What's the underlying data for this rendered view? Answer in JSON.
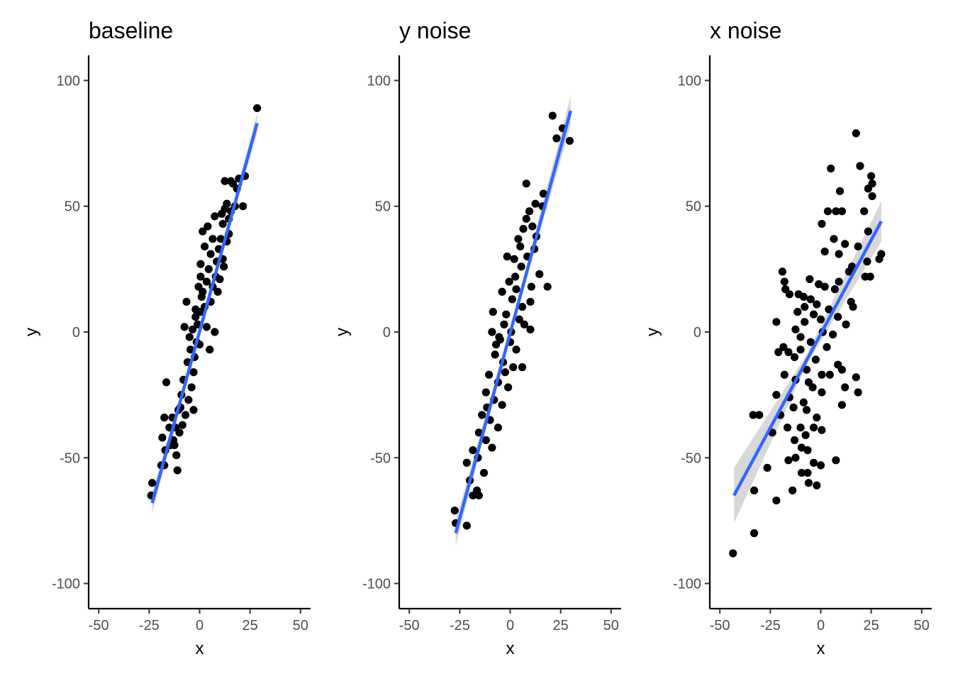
{
  "chart_data": [
    {
      "type": "scatter",
      "title": "baseline",
      "xlabel": "x",
      "ylabel": "y",
      "xlim": [
        -55,
        55
      ],
      "ylim": [
        -110,
        110
      ],
      "xticks": [
        -50,
        -25,
        0,
        25,
        50
      ],
      "xtick_labels": [
        "-50",
        "-25",
        "0",
        "25",
        "50"
      ],
      "yticks": [
        -100,
        -50,
        0,
        50,
        100
      ],
      "ytick_labels": [
        "-100",
        "-50",
        "0",
        "50",
        "100"
      ],
      "grid": false,
      "point_color": "#000000",
      "fit_line_color": "#3366FF",
      "band_color": "#BEBEBE",
      "fit": {
        "x1": -23.5,
        "y1": -68,
        "x2": 28.5,
        "y2": 83
      },
      "band": [
        {
          "x": -23.5,
          "lo": -72,
          "hi": -64
        },
        {
          "x": 2.5,
          "lo": 6.5,
          "hi": 8.5
        },
        {
          "x": 28.5,
          "lo": 79,
          "hi": 87
        }
      ],
      "points": [
        {
          "x": 28.5,
          "y": 89
        },
        {
          "x": 22.5,
          "y": 62
        },
        {
          "x": 21.5,
          "y": 50
        },
        {
          "x": 19.5,
          "y": 61
        },
        {
          "x": 18.5,
          "y": 57
        },
        {
          "x": 17.5,
          "y": 50
        },
        {
          "x": 16.5,
          "y": 59
        },
        {
          "x": 15.5,
          "y": 60
        },
        {
          "x": 15.5,
          "y": 48
        },
        {
          "x": 14.5,
          "y": 45
        },
        {
          "x": 14.5,
          "y": 39
        },
        {
          "x": 13.5,
          "y": 51
        },
        {
          "x": 13.5,
          "y": 36
        },
        {
          "x": 12.5,
          "y": 60
        },
        {
          "x": 12.5,
          "y": 49
        },
        {
          "x": 11.5,
          "y": 43
        },
        {
          "x": 10.5,
          "y": 37
        },
        {
          "x": 11.5,
          "y": 29
        },
        {
          "x": 12.0,
          "y": 26
        },
        {
          "x": 9.5,
          "y": 33
        },
        {
          "x": 8.5,
          "y": 28
        },
        {
          "x": 8.0,
          "y": 22
        },
        {
          "x": 7.5,
          "y": 46
        },
        {
          "x": 6.5,
          "y": 37
        },
        {
          "x": 6.5,
          "y": 18
        },
        {
          "x": 5.5,
          "y": 31
        },
        {
          "x": 5.5,
          "y": 12
        },
        {
          "x": 4.5,
          "y": 25
        },
        {
          "x": 7.5,
          "y": 0
        },
        {
          "x": 3.5,
          "y": 20
        },
        {
          "x": 3.5,
          "y": 2
        },
        {
          "x": 2.5,
          "y": 34
        },
        {
          "x": 2.5,
          "y": 10
        },
        {
          "x": 1.5,
          "y": 40
        },
        {
          "x": 1.5,
          "y": 16
        },
        {
          "x": 0.5,
          "y": 27
        },
        {
          "x": 0.5,
          "y": 8
        },
        {
          "x": 0.0,
          "y": -5
        },
        {
          "x": -0.5,
          "y": 18
        },
        {
          "x": -1.0,
          "y": 3
        },
        {
          "x": -1.5,
          "y": -4
        },
        {
          "x": -2.0,
          "y": 9
        },
        {
          "x": -2.5,
          "y": -10
        },
        {
          "x": -3.0,
          "y": -16
        },
        {
          "x": -3.5,
          "y": 1
        },
        {
          "x": -4.0,
          "y": -22
        },
        {
          "x": -4.5,
          "y": -7
        },
        {
          "x": -5.5,
          "y": -27
        },
        {
          "x": -6.0,
          "y": -12
        },
        {
          "x": -3.0,
          "y": -31
        },
        {
          "x": -7.0,
          "y": -33
        },
        {
          "x": -7.5,
          "y": 2
        },
        {
          "x": -8.0,
          "y": -19
        },
        {
          "x": -8.5,
          "y": -37
        },
        {
          "x": -9.0,
          "y": -25
        },
        {
          "x": -6.5,
          "y": 12
        },
        {
          "x": -10.0,
          "y": -40
        },
        {
          "x": -10.5,
          "y": -31
        },
        {
          "x": -11.5,
          "y": -49
        },
        {
          "x": -12.0,
          "y": -38
        },
        {
          "x": -13.0,
          "y": -43
        },
        {
          "x": -13.5,
          "y": -34
        },
        {
          "x": -11.0,
          "y": -55
        },
        {
          "x": -14.5,
          "y": -45
        },
        {
          "x": -15.0,
          "y": -38
        },
        {
          "x": -16.5,
          "y": -20
        },
        {
          "x": -17.0,
          "y": -47
        },
        {
          "x": -17.5,
          "y": -34
        },
        {
          "x": -18.5,
          "y": -42
        },
        {
          "x": -19.0,
          "y": -53
        },
        {
          "x": -17.5,
          "y": -53
        },
        {
          "x": -23.5,
          "y": -60
        },
        {
          "x": -24.0,
          "y": -65
        },
        {
          "x": 0.5,
          "y": 22
        },
        {
          "x": 1.0,
          "y": 14
        },
        {
          "x": 4.0,
          "y": 42
        },
        {
          "x": 5.0,
          "y": -7
        },
        {
          "x": 9.0,
          "y": 16
        },
        {
          "x": 10.0,
          "y": 21
        },
        {
          "x": 11.0,
          "y": 47
        },
        {
          "x": -2.0,
          "y": 6
        },
        {
          "x": -5.0,
          "y": -2
        },
        {
          "x": -9.5,
          "y": -30
        },
        {
          "x": -12.5,
          "y": -45
        }
      ]
    },
    {
      "type": "scatter",
      "title": "y noise",
      "xlabel": "x",
      "ylabel": "y",
      "xlim": [
        -55,
        55
      ],
      "ylim": [
        -110,
        110
      ],
      "xticks": [
        -50,
        -25,
        0,
        25,
        50
      ],
      "xtick_labels": [
        "-50",
        "-25",
        "0",
        "25",
        "50"
      ],
      "yticks": [
        -100,
        -50,
        0,
        50,
        100
      ],
      "ytick_labels": [
        "-100",
        "-50",
        "0",
        "50",
        "100"
      ],
      "grid": false,
      "point_color": "#000000",
      "fit_line_color": "#3366FF",
      "band_color": "#BEBEBE",
      "fit": {
        "x1": -27,
        "y1": -80,
        "x2": 30,
        "y2": 88
      },
      "band": [
        {
          "x": -27,
          "lo": -85,
          "hi": -75
        },
        {
          "x": 1.5,
          "lo": 3,
          "hi": 6
        },
        {
          "x": 30,
          "lo": 82,
          "hi": 94
        }
      ],
      "points": [
        {
          "x": 21.0,
          "y": 86
        },
        {
          "x": 26.0,
          "y": 81
        },
        {
          "x": 23.0,
          "y": 77
        },
        {
          "x": 29.5,
          "y": 76
        },
        {
          "x": 8.0,
          "y": 59
        },
        {
          "x": 16.5,
          "y": 55
        },
        {
          "x": 16.0,
          "y": 50
        },
        {
          "x": 12.5,
          "y": 51
        },
        {
          "x": 9.5,
          "y": 48
        },
        {
          "x": 11.0,
          "y": 42
        },
        {
          "x": 6.5,
          "y": 41
        },
        {
          "x": 4.0,
          "y": 37
        },
        {
          "x": 12.0,
          "y": 33
        },
        {
          "x": 8.5,
          "y": 30
        },
        {
          "x": 2.0,
          "y": 29
        },
        {
          "x": -1.5,
          "y": 30
        },
        {
          "x": 5.5,
          "y": 26
        },
        {
          "x": 14.5,
          "y": 23
        },
        {
          "x": 18.5,
          "y": 18
        },
        {
          "x": 10.5,
          "y": 18
        },
        {
          "x": 3.0,
          "y": 17
        },
        {
          "x": -0.5,
          "y": 20
        },
        {
          "x": -4.0,
          "y": 16
        },
        {
          "x": 1.0,
          "y": 13
        },
        {
          "x": 6.0,
          "y": 10
        },
        {
          "x": -8.5,
          "y": 8
        },
        {
          "x": -2.0,
          "y": 7
        },
        {
          "x": 4.5,
          "y": 5
        },
        {
          "x": 7.0,
          "y": 3
        },
        {
          "x": 10.0,
          "y": 1
        },
        {
          "x": -9.0,
          "y": 0
        },
        {
          "x": -5.5,
          "y": -2
        },
        {
          "x": 0.0,
          "y": -4
        },
        {
          "x": 3.0,
          "y": -7
        },
        {
          "x": -7.5,
          "y": -9
        },
        {
          "x": -3.5,
          "y": -12
        },
        {
          "x": 1.5,
          "y": -14
        },
        {
          "x": 6.0,
          "y": -14
        },
        {
          "x": -10.5,
          "y": -17
        },
        {
          "x": -6.0,
          "y": -20
        },
        {
          "x": -1.0,
          "y": -22
        },
        {
          "x": -12.0,
          "y": -24
        },
        {
          "x": -8.0,
          "y": -27
        },
        {
          "x": -4.0,
          "y": -29
        },
        {
          "x": -14.0,
          "y": -33
        },
        {
          "x": -10.0,
          "y": -35
        },
        {
          "x": -6.0,
          "y": -38
        },
        {
          "x": -15.5,
          "y": -40
        },
        {
          "x": -12.0,
          "y": -43
        },
        {
          "x": -9.0,
          "y": -46
        },
        {
          "x": -18.5,
          "y": -47
        },
        {
          "x": -16.0,
          "y": -50
        },
        {
          "x": -21.5,
          "y": -52
        },
        {
          "x": -13.0,
          "y": -56
        },
        {
          "x": -20.0,
          "y": -59
        },
        {
          "x": -16.5,
          "y": -63
        },
        {
          "x": -18.5,
          "y": -65
        },
        {
          "x": -15.5,
          "y": -65
        },
        {
          "x": -27.5,
          "y": -71
        },
        {
          "x": -27.0,
          "y": -76
        },
        {
          "x": -21.5,
          "y": -77
        },
        {
          "x": -5.0,
          "y": -3
        },
        {
          "x": 2.5,
          "y": 22
        },
        {
          "x": 13.0,
          "y": 38
        },
        {
          "x": -2.5,
          "y": -16
        },
        {
          "x": -11.5,
          "y": -30
        },
        {
          "x": 0.5,
          "y": 0
        },
        {
          "x": 8.0,
          "y": 45
        },
        {
          "x": 5.0,
          "y": 34
        },
        {
          "x": -7.0,
          "y": -5
        },
        {
          "x": 10.0,
          "y": 12
        },
        {
          "x": -3.0,
          "y": 3
        }
      ]
    },
    {
      "type": "scatter",
      "title": "x noise",
      "xlabel": "x",
      "ylabel": "y",
      "xlim": [
        -55,
        55
      ],
      "ylim": [
        -110,
        110
      ],
      "xticks": [
        -50,
        -25,
        0,
        25,
        50
      ],
      "xtick_labels": [
        "-50",
        "-25",
        "0",
        "25",
        "50"
      ],
      "yticks": [
        -100,
        -50,
        0,
        50,
        100
      ],
      "ytick_labels": [
        "-100",
        "-50",
        "0",
        "50",
        "100"
      ],
      "grid": false,
      "point_color": "#000000",
      "fit_line_color": "#3366FF",
      "band_color": "#BEBEBE",
      "fit": {
        "x1": -43,
        "y1": -65,
        "x2": 30,
        "y2": 44
      },
      "band": [
        {
          "x": -43,
          "lo": -76,
          "hi": -54
        },
        {
          "x": -7,
          "lo": -13,
          "hi": -9
        },
        {
          "x": 30,
          "lo": 36,
          "hi": 52
        }
      ],
      "points": [
        {
          "x": 17.5,
          "y": 79
        },
        {
          "x": 19.5,
          "y": 66
        },
        {
          "x": 5.0,
          "y": 65
        },
        {
          "x": 25.0,
          "y": 62
        },
        {
          "x": 25.5,
          "y": 59
        },
        {
          "x": 23.5,
          "y": 57
        },
        {
          "x": 25.5,
          "y": 54
        },
        {
          "x": 9.5,
          "y": 56
        },
        {
          "x": 21.5,
          "y": 48
        },
        {
          "x": 3.5,
          "y": 48
        },
        {
          "x": 7.5,
          "y": 48
        },
        {
          "x": 10.5,
          "y": 48
        },
        {
          "x": 0.5,
          "y": 43
        },
        {
          "x": 23.5,
          "y": 40
        },
        {
          "x": 6.5,
          "y": 37
        },
        {
          "x": 12.0,
          "y": 35
        },
        {
          "x": 18.5,
          "y": 34
        },
        {
          "x": 30.0,
          "y": 31
        },
        {
          "x": 2.0,
          "y": 32
        },
        {
          "x": 9.0,
          "y": 31
        },
        {
          "x": 29.0,
          "y": 29
        },
        {
          "x": 23.0,
          "y": 28
        },
        {
          "x": 15.5,
          "y": 26
        },
        {
          "x": 22.0,
          "y": 22
        },
        {
          "x": 14.0,
          "y": 24
        },
        {
          "x": -19.0,
          "y": 24
        },
        {
          "x": 24.5,
          "y": 22
        },
        {
          "x": -5.5,
          "y": 21
        },
        {
          "x": 9.0,
          "y": 20
        },
        {
          "x": -18.0,
          "y": 20
        },
        {
          "x": -1.0,
          "y": 19
        },
        {
          "x": -17.5,
          "y": 17
        },
        {
          "x": 2.0,
          "y": 18
        },
        {
          "x": 7.0,
          "y": 17
        },
        {
          "x": -11.0,
          "y": 15
        },
        {
          "x": -15.5,
          "y": 15
        },
        {
          "x": -5.0,
          "y": 13
        },
        {
          "x": -8.5,
          "y": 14
        },
        {
          "x": 15.0,
          "y": 12
        },
        {
          "x": -2.0,
          "y": 11
        },
        {
          "x": -8.0,
          "y": 10
        },
        {
          "x": 4.0,
          "y": 9
        },
        {
          "x": 16.0,
          "y": 10
        },
        {
          "x": -11.5,
          "y": 8
        },
        {
          "x": -3.5,
          "y": 7
        },
        {
          "x": 8.5,
          "y": 6
        },
        {
          "x": 0.0,
          "y": 5
        },
        {
          "x": -8.0,
          "y": 4
        },
        {
          "x": -22.0,
          "y": 4
        },
        {
          "x": 12.5,
          "y": 3
        },
        {
          "x": -12.5,
          "y": 1
        },
        {
          "x": 1.0,
          "y": 0
        },
        {
          "x": 6.0,
          "y": -1
        },
        {
          "x": -10.0,
          "y": -2
        },
        {
          "x": -18.5,
          "y": -6
        },
        {
          "x": -5.0,
          "y": -4
        },
        {
          "x": 3.0,
          "y": -6
        },
        {
          "x": -16.0,
          "y": -8
        },
        {
          "x": -10.0,
          "y": -7
        },
        {
          "x": -21.0,
          "y": -8
        },
        {
          "x": -13.0,
          "y": -10
        },
        {
          "x": 8.5,
          "y": -13
        },
        {
          "x": -2.5,
          "y": -11
        },
        {
          "x": 10.5,
          "y": -15
        },
        {
          "x": -7.0,
          "y": -15
        },
        {
          "x": -18.0,
          "y": -17
        },
        {
          "x": 0.5,
          "y": -17
        },
        {
          "x": -12.5,
          "y": -19
        },
        {
          "x": 17.5,
          "y": -18
        },
        {
          "x": -6.0,
          "y": -20
        },
        {
          "x": 4.5,
          "y": -17
        },
        {
          "x": -4.0,
          "y": -22
        },
        {
          "x": 12.0,
          "y": -22
        },
        {
          "x": -22.0,
          "y": -25
        },
        {
          "x": 0.5,
          "y": -24
        },
        {
          "x": 18.5,
          "y": -24
        },
        {
          "x": -15.5,
          "y": -26
        },
        {
          "x": -8.5,
          "y": -28
        },
        {
          "x": -7.0,
          "y": -31
        },
        {
          "x": 10.5,
          "y": -29
        },
        {
          "x": -20.0,
          "y": -33
        },
        {
          "x": -13.5,
          "y": -30
        },
        {
          "x": -2.0,
          "y": -34
        },
        {
          "x": -30.5,
          "y": -33
        },
        {
          "x": -33.5,
          "y": -33
        },
        {
          "x": -10.0,
          "y": -38
        },
        {
          "x": -3.5,
          "y": -38
        },
        {
          "x": -16.5,
          "y": -38
        },
        {
          "x": -24.0,
          "y": -40
        },
        {
          "x": -7.5,
          "y": -41
        },
        {
          "x": -13.0,
          "y": -43
        },
        {
          "x": 0.5,
          "y": -39
        },
        {
          "x": -9.5,
          "y": -46
        },
        {
          "x": -6.5,
          "y": -47
        },
        {
          "x": -12.5,
          "y": -50
        },
        {
          "x": -16.0,
          "y": -51
        },
        {
          "x": 7.5,
          "y": -51
        },
        {
          "x": -3.5,
          "y": -52
        },
        {
          "x": 0.0,
          "y": -53
        },
        {
          "x": -26.5,
          "y": -54
        },
        {
          "x": -9.5,
          "y": -56
        },
        {
          "x": -6.5,
          "y": -56
        },
        {
          "x": -14.0,
          "y": -63
        },
        {
          "x": -2.0,
          "y": -61
        },
        {
          "x": -6.0,
          "y": -60
        },
        {
          "x": -33.0,
          "y": -63
        },
        {
          "x": -22.0,
          "y": -67
        },
        {
          "x": -33.0,
          "y": -80
        },
        {
          "x": -43.5,
          "y": -88
        }
      ]
    }
  ]
}
